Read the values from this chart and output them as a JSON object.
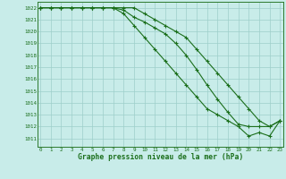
{
  "title": "Graphe pression niveau de la mer (hPa)",
  "background_color": "#c8ece9",
  "grid_color": "#9ecfca",
  "line_color": "#1a6e1a",
  "spine_color": "#2d7a2d",
  "x_ticks": [
    0,
    1,
    2,
    3,
    4,
    5,
    6,
    7,
    8,
    9,
    10,
    11,
    12,
    13,
    14,
    15,
    16,
    17,
    18,
    19,
    20,
    21,
    22,
    23
  ],
  "y_ticks": [
    1011,
    1012,
    1013,
    1014,
    1015,
    1016,
    1017,
    1018,
    1019,
    1020,
    1021,
    1022
  ],
  "ylim": [
    1010.3,
    1022.5
  ],
  "xlim": [
    -0.3,
    23.3
  ],
  "line1": [
    1022,
    1022,
    1022,
    1022,
    1022,
    1022,
    1022,
    1022,
    1022,
    1022,
    1021.5,
    1021,
    1020.5,
    1020,
    1019.5,
    1018.5,
    1017.5,
    1016.5,
    1015.5,
    1014.5,
    1013.5,
    1012.5,
    1012,
    1012.5
  ],
  "line2": [
    1022,
    1022,
    1022,
    1022,
    1022,
    1022,
    1022,
    1022,
    1021.8,
    1021.2,
    1020.8,
    1020.3,
    1019.8,
    1019,
    1018,
    1016.8,
    1015.5,
    1014.3,
    1013.2,
    1012.2,
    1012,
    1012,
    1012,
    1012.5
  ],
  "line3": [
    1022,
    1022,
    1022,
    1022,
    1022,
    1022,
    1022,
    1022,
    1021.5,
    1020.5,
    1019.5,
    1018.5,
    1017.5,
    1016.5,
    1015.5,
    1014.5,
    1013.5,
    1013,
    1012.5,
    1012,
    1011.2,
    1011.5,
    1011.2,
    1012.5
  ]
}
